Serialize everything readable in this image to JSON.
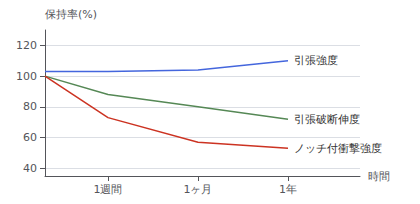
{
  "chart_data": {
    "type": "line",
    "ylabel": "保持率(%)",
    "xlabel": "時間",
    "x": [
      0.0,
      0.7,
      1.7,
      2.7
    ],
    "xlim": [
      0,
      3.5
    ],
    "xticks": [
      {
        "value": 0.7,
        "label": "1週間"
      },
      {
        "value": 1.7,
        "label": "1ヶ月"
      },
      {
        "value": 2.7,
        "label": "1年"
      }
    ],
    "ylim": [
      35,
      130
    ],
    "yticks": [
      40,
      60,
      80,
      100,
      120
    ],
    "grid": true,
    "series": [
      {
        "name": "引張強度",
        "color": "#4466dd",
        "values": [
          103,
          103,
          104,
          110
        ]
      },
      {
        "name": "引張破断伸度",
        "color": "#558855",
        "values": [
          100,
          88,
          80,
          72
        ]
      },
      {
        "name": "ノッチ付衝撃強度",
        "color": "#cc3322",
        "values": [
          100,
          73,
          57,
          53
        ]
      }
    ]
  }
}
